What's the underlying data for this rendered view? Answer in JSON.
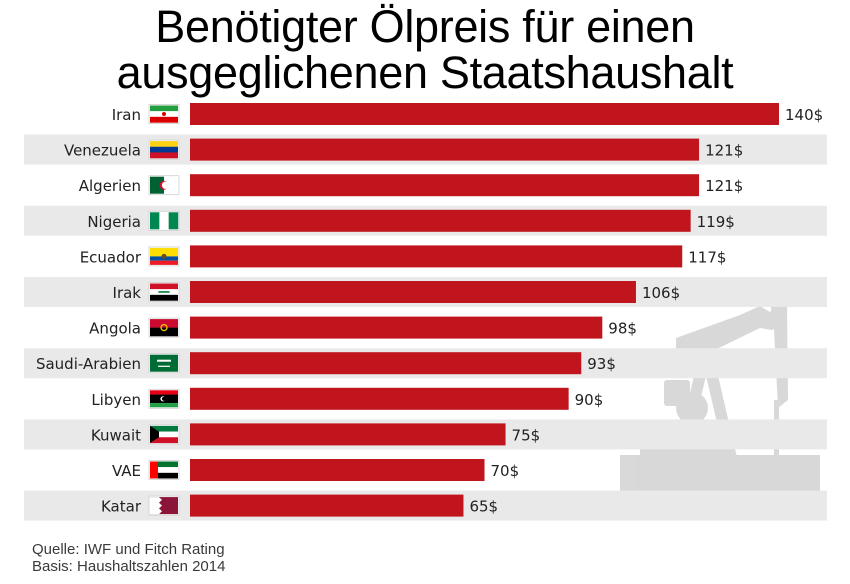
{
  "title_lines": [
    "Benötigter Ölpreis für einen",
    "ausgeglichenen Staatshaushalt"
  ],
  "source": {
    "line1": "Quelle: IWF und Fitch Rating",
    "line2": "Basis: Haushaltszahlen 2014"
  },
  "chart_data": {
    "type": "bar",
    "orientation": "horizontal",
    "title": "Benötigter Ölpreis für einen ausgeglichenen Staatshaushalt",
    "value_suffix": "$",
    "bar_color": "#c0151d",
    "row_stripe_color": "#e9e9e9",
    "xlim": [
      0,
      140
    ],
    "grid": false,
    "categories": [
      "Iran",
      "Venezuela",
      "Algerien",
      "Nigeria",
      "Ecuador",
      "Irak",
      "Angola",
      "Saudi-Arabien",
      "Libyen",
      "Kuwait",
      "VAE",
      "Katar"
    ],
    "values": [
      140,
      121,
      121,
      119,
      117,
      106,
      98,
      93,
      90,
      75,
      70,
      65
    ],
    "flag_icons": [
      "flag-iran-icon",
      "flag-venezuela-icon",
      "flag-algeria-icon",
      "flag-nigeria-icon",
      "flag-ecuador-icon",
      "flag-iraq-icon",
      "flag-angola-icon",
      "flag-saudi-arabia-icon",
      "flag-libya-icon",
      "flag-kuwait-icon",
      "flag-uae-icon",
      "flag-qatar-icon"
    ]
  }
}
